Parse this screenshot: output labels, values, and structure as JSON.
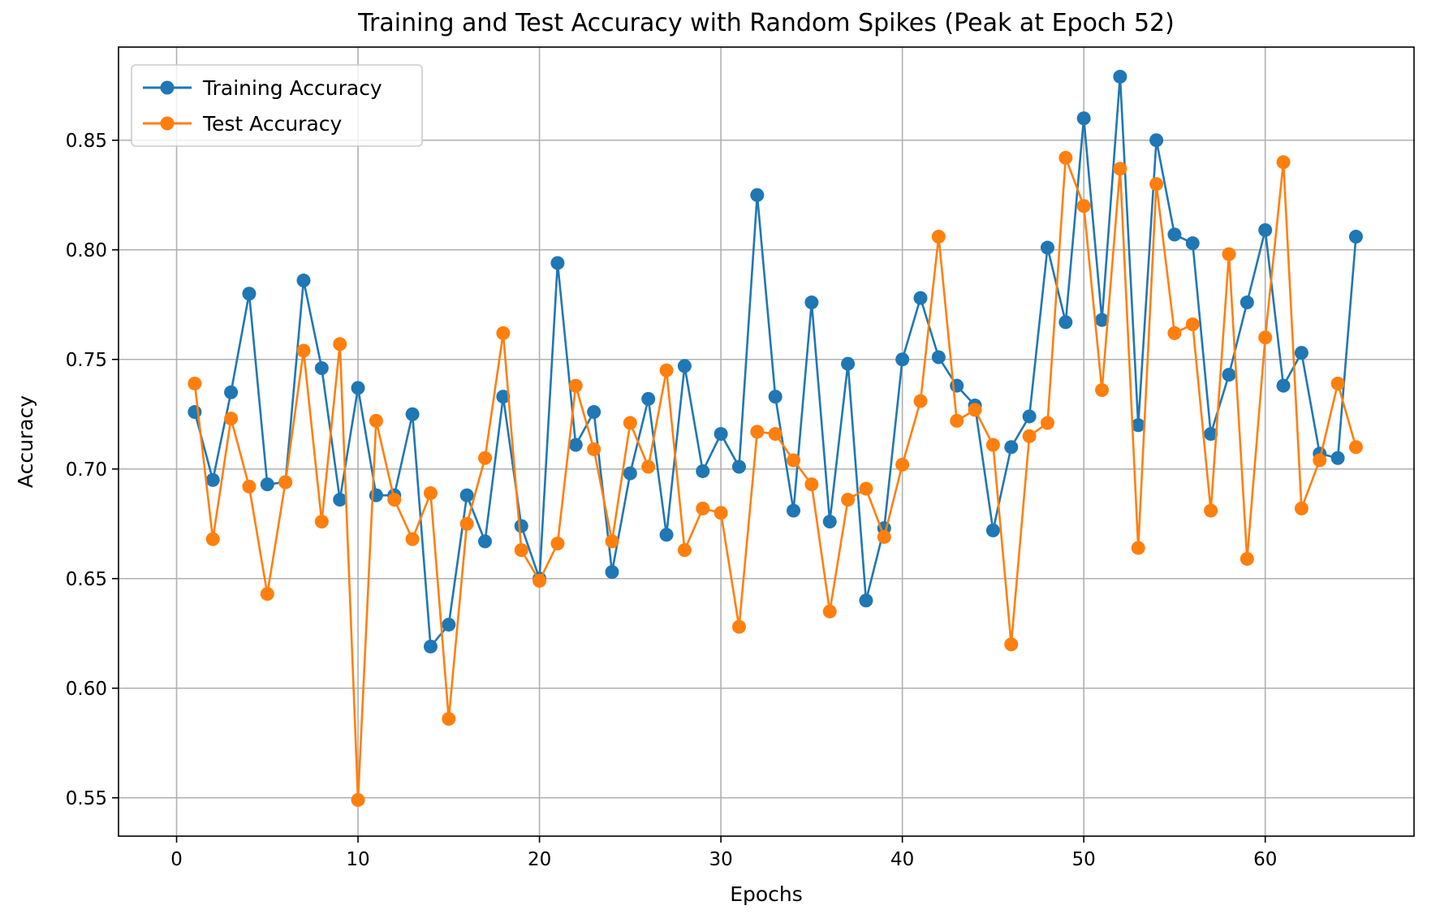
{
  "chart_data": {
    "type": "line",
    "title": "Training and Test Accuracy with Random Spikes (Peak at Epoch 52)",
    "xlabel": "Epochs",
    "ylabel": "Accuracy",
    "xlim": [
      -3.2,
      68.2
    ],
    "ylim": [
      0.5325,
      0.8925
    ],
    "xticks": [
      0,
      10,
      20,
      30,
      40,
      50,
      60
    ],
    "yticks": [
      0.55,
      0.6,
      0.65,
      0.7,
      0.75,
      0.8,
      0.85
    ],
    "grid": true,
    "legend_position": "upper-left",
    "x": [
      1,
      2,
      3,
      4,
      5,
      6,
      7,
      8,
      9,
      10,
      11,
      12,
      13,
      14,
      15,
      16,
      17,
      18,
      19,
      20,
      21,
      22,
      23,
      24,
      25,
      26,
      27,
      28,
      29,
      30,
      31,
      32,
      33,
      34,
      35,
      36,
      37,
      38,
      39,
      40,
      41,
      42,
      43,
      44,
      45,
      46,
      47,
      48,
      49,
      50,
      51,
      52,
      53,
      54,
      55,
      56,
      57,
      58,
      59,
      60,
      61,
      62,
      63,
      64,
      65
    ],
    "series": [
      {
        "name": "Training Accuracy",
        "color": "#1f77b4",
        "values": [
          0.726,
          0.695,
          0.735,
          0.78,
          0.693,
          0.694,
          0.786,
          0.746,
          0.686,
          0.737,
          0.688,
          0.688,
          0.725,
          0.619,
          0.629,
          0.688,
          0.667,
          0.733,
          0.674,
          0.65,
          0.794,
          0.711,
          0.726,
          0.653,
          0.698,
          0.732,
          0.67,
          0.747,
          0.699,
          0.716,
          0.701,
          0.825,
          0.733,
          0.681,
          0.776,
          0.676,
          0.748,
          0.64,
          0.673,
          0.75,
          0.778,
          0.751,
          0.738,
          0.729,
          0.672,
          0.71,
          0.724,
          0.801,
          0.767,
          0.86,
          0.768,
          0.879,
          0.72,
          0.85,
          0.807,
          0.803,
          0.716,
          0.743,
          0.776,
          0.809,
          0.738,
          0.753,
          0.707,
          0.705,
          0.806
        ]
      },
      {
        "name": "Test Accuracy",
        "color": "#ff7f0e",
        "values": [
          0.739,
          0.668,
          0.723,
          0.692,
          0.643,
          0.694,
          0.754,
          0.676,
          0.757,
          0.549,
          0.722,
          0.686,
          0.668,
          0.689,
          0.586,
          0.675,
          0.705,
          0.762,
          0.663,
          0.649,
          0.666,
          0.738,
          0.709,
          0.667,
          0.721,
          0.701,
          0.745,
          0.663,
          0.682,
          0.68,
          0.628,
          0.717,
          0.716,
          0.704,
          0.693,
          0.635,
          0.686,
          0.691,
          0.669,
          0.702,
          0.731,
          0.806,
          0.722,
          0.727,
          0.711,
          0.62,
          0.715,
          0.721,
          0.842,
          0.82,
          0.736,
          0.837,
          0.664,
          0.83,
          0.762,
          0.766,
          0.681,
          0.798,
          0.659,
          0.76,
          0.84,
          0.682,
          0.704,
          0.739,
          0.71
        ]
      }
    ]
  }
}
